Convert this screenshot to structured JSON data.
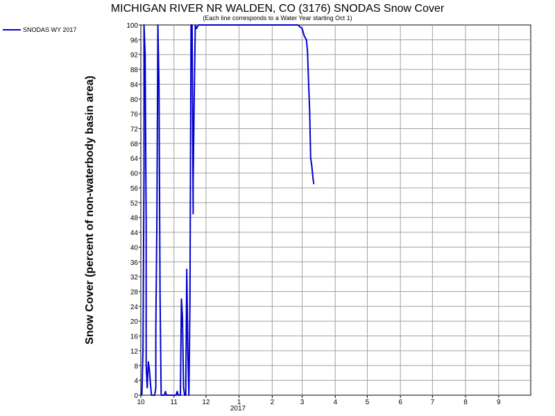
{
  "chart_data": {
    "type": "line",
    "title": "MICHIGAN RIVER NR WALDEN, CO (3176) SNODAS Snow Cover",
    "subtitle": "(Each line corresponds to a Water Year starting Oct 1)",
    "ylabel": "Snow Cover (percent of non-waterbody basin area)",
    "xlabel": "",
    "ylim": [
      0,
      100
    ],
    "xlim": [
      "2016-10-01",
      "2017-09-30"
    ],
    "y_ticks": [
      0,
      4,
      8,
      12,
      16,
      20,
      24,
      28,
      32,
      36,
      40,
      44,
      48,
      52,
      56,
      60,
      64,
      68,
      72,
      76,
      80,
      84,
      88,
      92,
      96,
      100
    ],
    "x_ticks": [
      {
        "date": "2016-10-01",
        "label": "10"
      },
      {
        "date": "2016-11-01",
        "label": "11"
      },
      {
        "date": "2016-12-01",
        "label": "12"
      },
      {
        "date": "2017-01-01",
        "label": "1"
      },
      {
        "date": "2017-02-01",
        "label": "2"
      },
      {
        "date": "2017-03-01",
        "label": "3"
      },
      {
        "date": "2017-04-01",
        "label": "4"
      },
      {
        "date": "2017-05-01",
        "label": "5"
      },
      {
        "date": "2017-06-01",
        "label": "6"
      },
      {
        "date": "2017-07-01",
        "label": "7"
      },
      {
        "date": "2017-08-01",
        "label": "8"
      },
      {
        "date": "2017-09-01",
        "label": "9"
      }
    ],
    "year_label": "2017",
    "grid": true,
    "legend_position": "top-left",
    "series": [
      {
        "name": "SNODAS WY 2017",
        "color": "#0000cc",
        "points": [
          [
            "2016-10-02",
            0
          ],
          [
            "2016-10-03",
            12
          ],
          [
            "2016-10-04",
            62
          ],
          [
            "2016-10-04",
            100
          ],
          [
            "2016-10-05",
            92
          ],
          [
            "2016-10-06",
            47
          ],
          [
            "2016-10-06",
            8
          ],
          [
            "2016-10-07",
            2
          ],
          [
            "2016-10-08",
            9
          ],
          [
            "2016-10-09",
            7
          ],
          [
            "2016-10-10",
            3
          ],
          [
            "2016-10-11",
            0
          ],
          [
            "2016-10-14",
            0
          ],
          [
            "2016-10-15",
            2
          ],
          [
            "2016-10-15",
            18
          ],
          [
            "2016-10-16",
            46
          ],
          [
            "2016-10-17",
            100
          ],
          [
            "2016-10-18",
            83
          ],
          [
            "2016-10-19",
            27
          ],
          [
            "2016-10-20",
            0
          ],
          [
            "2016-10-23",
            0
          ],
          [
            "2016-10-24",
            1
          ],
          [
            "2016-10-25",
            0
          ],
          [
            "2016-11-03",
            0
          ],
          [
            "2016-11-04",
            1
          ],
          [
            "2016-11-05",
            0
          ],
          [
            "2016-11-07",
            0
          ],
          [
            "2016-11-08",
            26
          ],
          [
            "2016-11-09",
            21
          ],
          [
            "2016-11-10",
            2
          ],
          [
            "2016-11-11",
            0
          ],
          [
            "2016-11-12",
            0
          ],
          [
            "2016-11-13",
            34
          ],
          [
            "2016-11-14",
            12
          ],
          [
            "2016-11-15",
            0
          ],
          [
            "2016-11-16",
            25
          ],
          [
            "2016-11-17",
            100
          ],
          [
            "2016-11-18",
            100
          ],
          [
            "2016-11-19",
            49
          ],
          [
            "2016-11-19",
            57
          ],
          [
            "2016-11-20",
            81
          ],
          [
            "2016-11-21",
            100
          ],
          [
            "2016-11-22",
            99
          ],
          [
            "2016-11-24",
            100
          ],
          [
            "2017-02-25",
            100
          ],
          [
            "2017-03-01",
            99
          ],
          [
            "2017-03-03",
            97
          ],
          [
            "2017-03-05",
            96
          ],
          [
            "2017-03-06",
            93
          ],
          [
            "2017-03-07",
            85
          ],
          [
            "2017-03-08",
            77
          ],
          [
            "2017-03-09",
            64
          ],
          [
            "2017-03-10",
            62
          ],
          [
            "2017-03-11",
            59
          ],
          [
            "2017-03-12",
            57
          ]
        ]
      }
    ]
  }
}
